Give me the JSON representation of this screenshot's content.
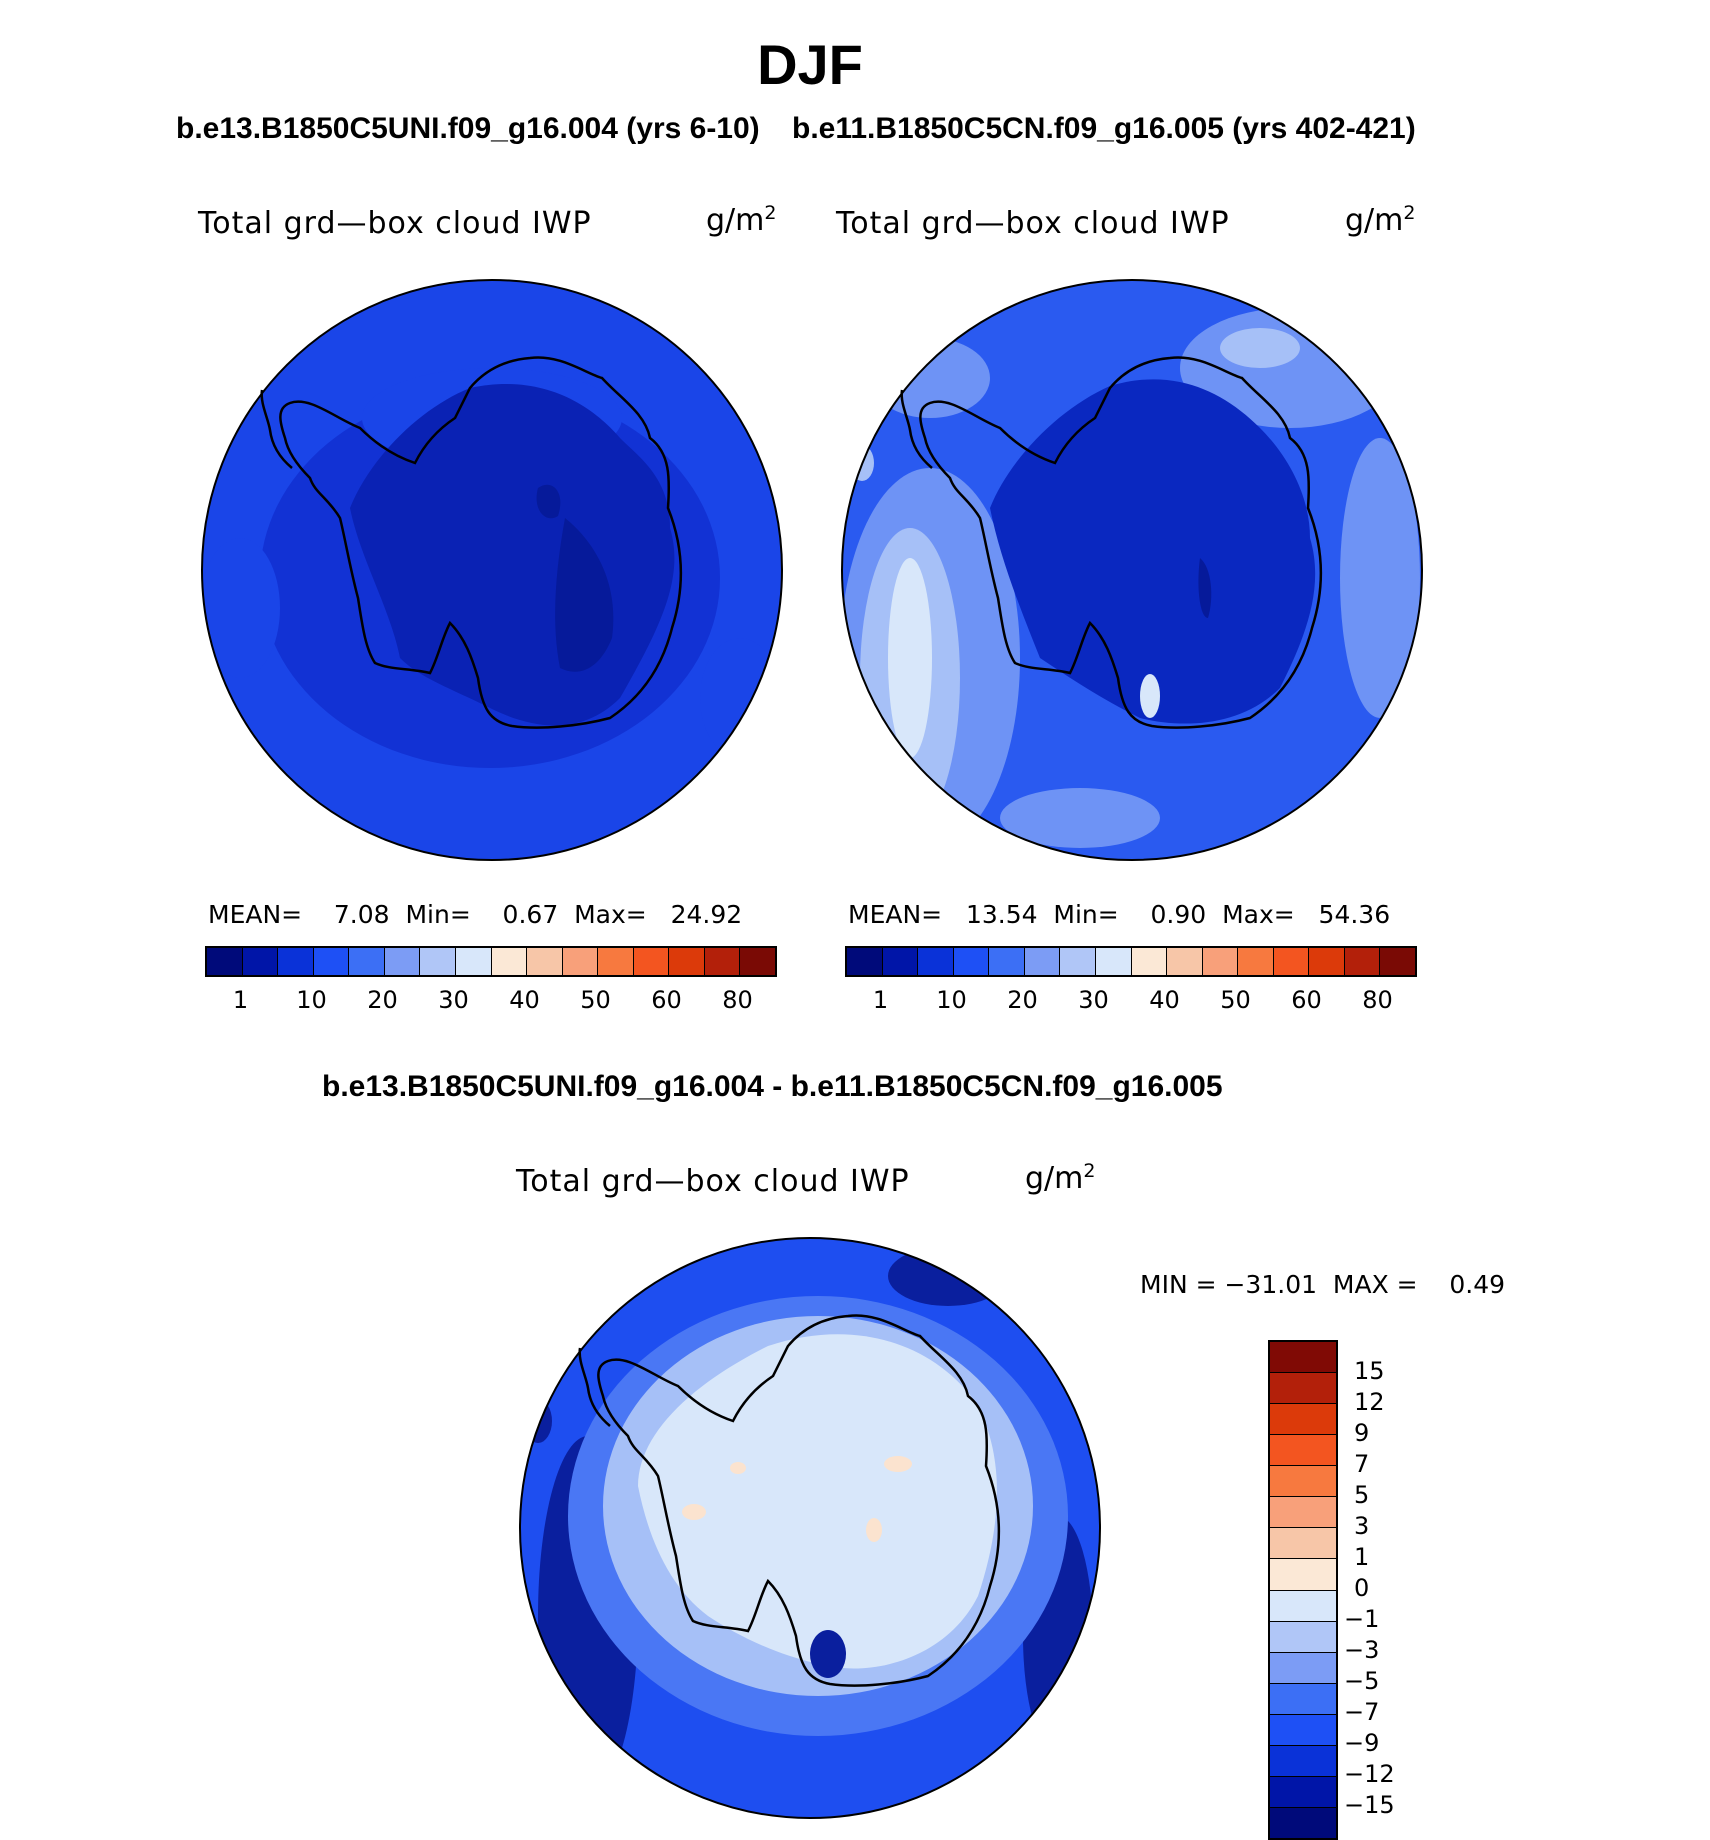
{
  "title": "DJF",
  "panels": [
    {
      "case_title": "b.e13.B1850C5UNI.f09_g16.004 (yrs 6-10)",
      "variable": "Total grd—box cloud IWP",
      "units": "g/m",
      "units_exp": "2",
      "stats": "MEAN=    7.08  Min=    0.67  Max=   24.92",
      "stats_values": {
        "mean": 7.08,
        "min": 0.67,
        "max": 24.92
      }
    },
    {
      "case_title": "b.e11.B1850C5CN.f09_g16.005 (yrs 402-421)",
      "variable": "Total grd—box cloud IWP",
      "units": "g/m",
      "units_exp": "2",
      "stats": "MEAN=   13.54  Min=    0.90  Max=   54.36",
      "stats_values": {
        "mean": 13.54,
        "min": 0.9,
        "max": 54.36
      }
    },
    {
      "case_title": "b.e13.B1850C5UNI.f09_g16.004 - b.e11.B1850C5CN.f09_g16.005",
      "variable": "Total grd—box cloud IWP",
      "units": "g/m",
      "units_exp": "2",
      "stats": "MIN = −31.01  MAX =    0.49",
      "stats_values": {
        "min": -31.01,
        "max": 0.49
      }
    }
  ],
  "colorbar_abs": {
    "ticks": [
      "1",
      "10",
      "20",
      "30",
      "40",
      "50",
      "60",
      "80"
    ],
    "colors": [
      "#000a7a",
      "#0015a8",
      "#0a32d8",
      "#1e50f5",
      "#3c6ff5",
      "#7c9cf5",
      "#b0c6f7",
      "#d8e7fa",
      "#fbe8d6",
      "#f7c6a8",
      "#f8a07a",
      "#f7793f",
      "#f35520",
      "#dc3a0a",
      "#b3200a",
      "#7a0a05"
    ]
  },
  "colorbar_diff": {
    "ticks": [
      "15",
      "12",
      "9",
      "7",
      "5",
      "3",
      "1",
      "0",
      "−1",
      "−3",
      "−5",
      "−7",
      "−9",
      "−12",
      "−15"
    ],
    "colors": [
      "#800a05",
      "#b3200a",
      "#dc3a0a",
      "#f35520",
      "#f7793f",
      "#f8a07a",
      "#f7c6a8",
      "#fbe8d6",
      "#d8e7fa",
      "#b0c6f7",
      "#7c9cf5",
      "#3c6ff5",
      "#1e50f5",
      "#0a32d8",
      "#0015a8",
      "#000a7a"
    ]
  },
  "map_colors": {
    "p1_ocean": "#1a45e8",
    "p1_mid": "#1232d4",
    "p1_dark": "#0a22b4",
    "p1_darkest": "#061a9a",
    "p2_ocean": "#2a5af0",
    "p2_light": "#6e93f5",
    "p2_lighter": "#a6c0f7",
    "p2_pale": "#d8e7fa",
    "p2_ant": "#0a28c0",
    "p3_ocean": "#1e4ef0",
    "p3_deep": "#0a1f9e",
    "p3_mid": "#4a77f4",
    "p3_light": "#a6c0f7",
    "p3_pale": "#d8e7fa",
    "p3_warm": "#fbe3cf"
  }
}
